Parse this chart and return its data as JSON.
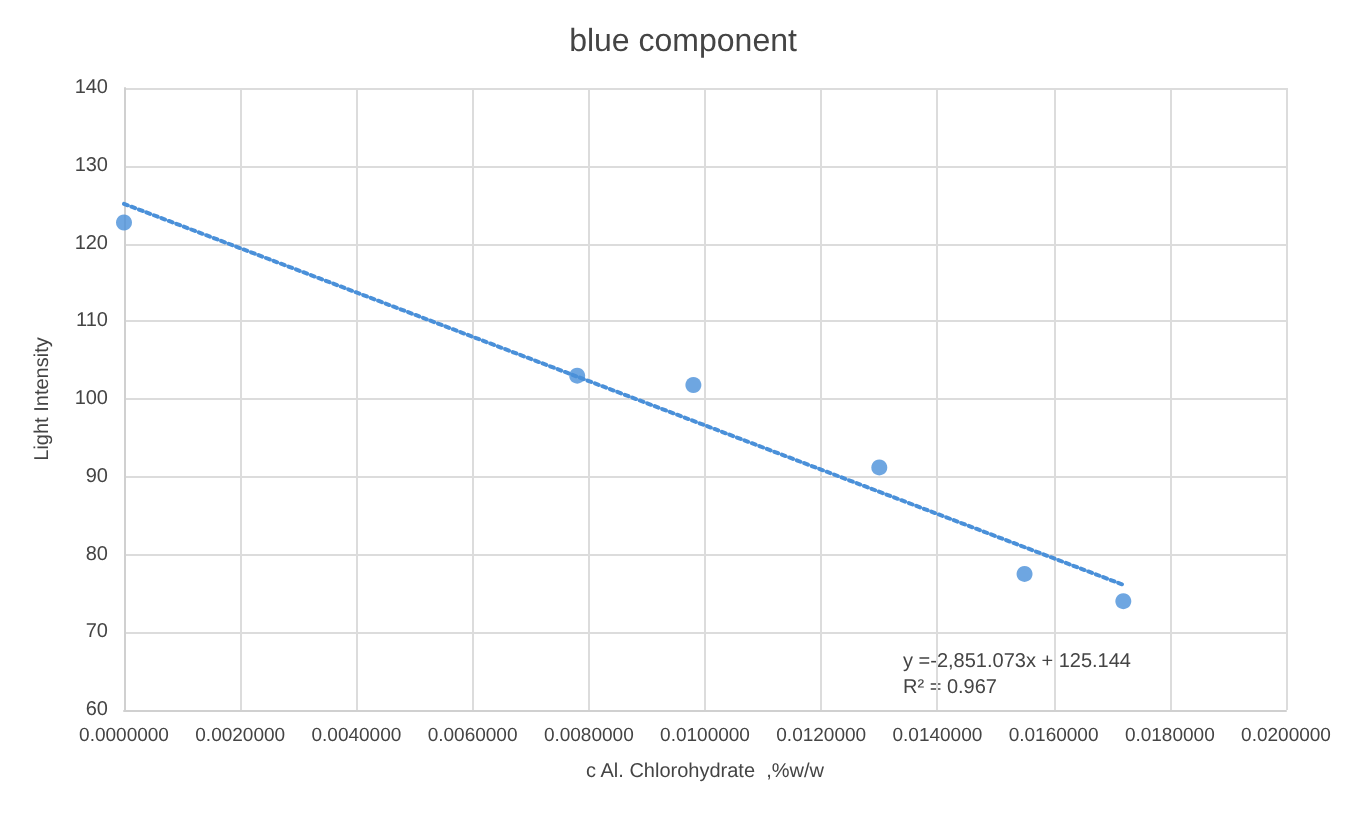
{
  "chart_data": {
    "type": "scatter",
    "title": "blue component",
    "xlabel": "c Al. Chlorohydrate  ,%w/w",
    "ylabel": "Light Intensity",
    "x": [
      0.0,
      0.0078,
      0.0098,
      0.013,
      0.0155,
      0.0172
    ],
    "series": [
      {
        "color": "#4a90d9",
        "marker": "circle",
        "values": [
          122.7,
          103.0,
          101.8,
          91.2,
          77.5,
          74.0
        ]
      },
      {
        "type": "line",
        "color": "#4a90d9",
        "marker": "none",
        "line_style": "dotted",
        "x": [
          0.0,
          0.0172
        ],
        "values": [
          125.1,
          76.1
        ]
      }
    ],
    "xlim": [
      0,
      0.02
    ],
    "xticks": [
      {
        "value": 0,
        "label": "0.0000000"
      },
      {
        "value": 0.002,
        "label": "0.0020000"
      },
      {
        "value": 0.004,
        "label": "0.0040000"
      },
      {
        "value": 0.006,
        "label": "0.0060000"
      },
      {
        "value": 0.008,
        "label": "0.0080000"
      },
      {
        "value": 0.01,
        "label": "0.0100000"
      },
      {
        "value": 0.012,
        "label": "0.0120000"
      },
      {
        "value": 0.014,
        "label": "0.0140000"
      },
      {
        "value": 0.016,
        "label": "0.0160000"
      },
      {
        "value": 0.018,
        "label": "0.0180000"
      },
      {
        "value": 0.02,
        "label": "0.0200000"
      }
    ],
    "ylim": [
      60,
      140
    ],
    "yticks": [
      60,
      70,
      80,
      90,
      100,
      110,
      120,
      130,
      140
    ],
    "annotations": [
      "y =-2,851.073x + 125.144",
      "R² = 0.967"
    ],
    "grid": true
  }
}
